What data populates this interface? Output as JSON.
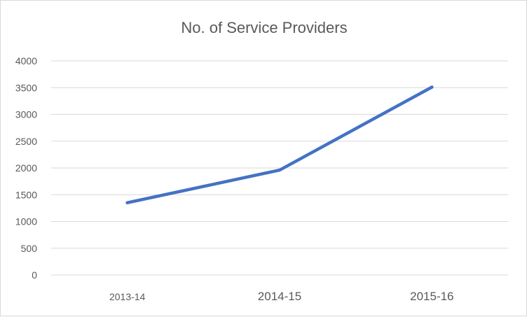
{
  "chart_data": {
    "type": "line",
    "title": "No. of Service Providers",
    "xlabel": "",
    "ylabel": "",
    "categories": [
      "2013-14",
      "2014-15",
      "2015-16"
    ],
    "series": [
      {
        "values": [
          1350,
          1960,
          3510
        ],
        "color": "#4472c4"
      }
    ],
    "ylim": [
      0,
      4000
    ],
    "yticks": [
      "0",
      "500",
      "1000",
      "1500",
      "2000",
      "2500",
      "3000",
      "3500",
      "4000"
    ],
    "grid": true,
    "legend": "none"
  }
}
